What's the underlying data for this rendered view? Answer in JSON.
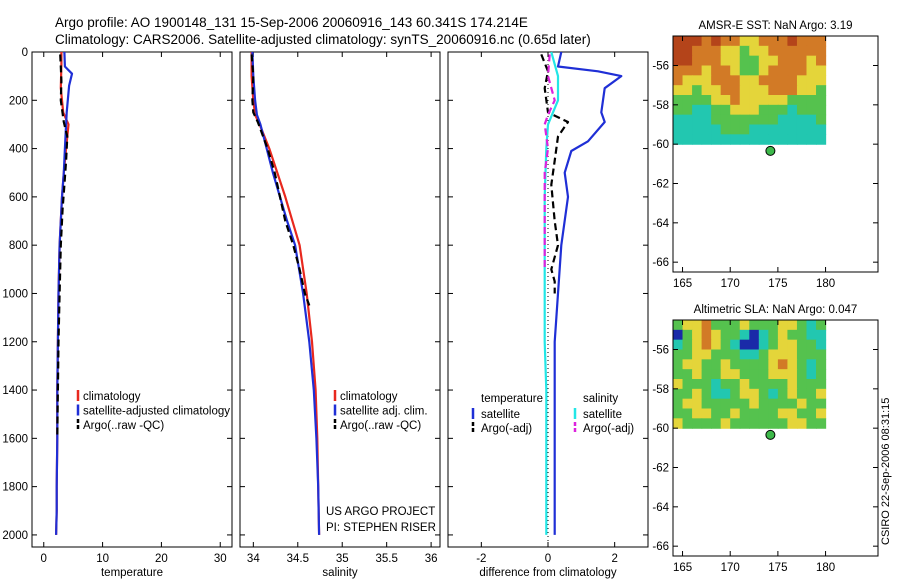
{
  "header": {
    "line1": "Argo profile: AO 1900148_131 15-Sep-2006 20060916_143 60.341S 174.214E",
    "line2": "Climatology: CARS2006. Satellite-adjusted climatology: synTS_20060916.nc (0.65d later)"
  },
  "credit": {
    "project": "US ARGO PROJECT",
    "pi": "PI: STEPHEN RISER",
    "stamp": "CSIRO 22-Sep-2006 08:31:15"
  },
  "colors": {
    "climatology": "#e8281e",
    "satellite": "#1f2fd6",
    "argo": "#000000",
    "sat_diff": "#22e6e6",
    "argo_diff": "#dd22dd"
  },
  "chart_data": [
    {
      "id": "temperature",
      "type": "line",
      "xlabel": "temperature",
      "ylabel": "",
      "xlim": [
        -2,
        32
      ],
      "ylim": [
        0,
        2050
      ],
      "xticks": [
        0,
        10,
        20,
        30
      ],
      "yticks": [
        0,
        200,
        400,
        600,
        800,
        1000,
        1200,
        1400,
        1600,
        1800,
        2000
      ],
      "legend": [
        "climatology",
        "satellite-adjusted climatology",
        "Argo(..raw -QC)"
      ],
      "series": [
        {
          "name": "climatology",
          "role": "climatology",
          "x": [
            3.0,
            3.0,
            2.9,
            3.3,
            4.2,
            3.8,
            3.4,
            3.1,
            2.9,
            2.7,
            2.5,
            2.4,
            2.3,
            2.3,
            2.2,
            2.2,
            2.1
          ],
          "y": [
            0,
            50,
            150,
            250,
            300,
            400,
            500,
            600,
            700,
            800,
            1000,
            1200,
            1400,
            1600,
            1800,
            1900,
            2000
          ]
        },
        {
          "name": "satellite-adjusted climatology",
          "role": "satellite",
          "x": [
            3.5,
            3.6,
            4.8,
            4.3,
            3.9,
            3.6,
            3.4,
            3.1,
            2.9,
            2.7,
            2.5,
            2.4,
            2.3,
            2.3,
            2.2,
            2.2,
            2.1
          ],
          "y": [
            0,
            60,
            90,
            140,
            250,
            400,
            500,
            600,
            700,
            800,
            1000,
            1200,
            1400,
            1600,
            1800,
            1900,
            2000
          ]
        },
        {
          "name": "Argo(..raw -QC)",
          "role": "argo",
          "x": [
            2.8,
            2.9,
            3.0,
            2.9,
            3.4,
            4.0,
            3.8,
            3.5,
            3.2,
            2.9,
            2.7,
            2.5,
            2.4,
            2.3
          ],
          "y": [
            10,
            60,
            120,
            200,
            290,
            350,
            450,
            550,
            650,
            800,
            1000,
            1200,
            1400,
            1600
          ]
        }
      ]
    },
    {
      "id": "salinity",
      "type": "line",
      "xlabel": "salinity",
      "ylabel": "",
      "xlim": [
        33.85,
        36.1
      ],
      "ylim": [
        0,
        2050
      ],
      "xticks": [
        34,
        34.5,
        35,
        35.5,
        36
      ],
      "yticks": [
        0,
        200,
        400,
        600,
        800,
        1000,
        1200,
        1400,
        1600,
        1800,
        2000
      ],
      "legend": [
        "climatology",
        "satellite adj. clim.",
        "Argo(..raw -QC)"
      ],
      "series": [
        {
          "name": "climatology",
          "role": "climatology",
          "x": [
            33.98,
            33.98,
            34.0,
            34.02,
            34.07,
            34.18,
            34.27,
            34.36,
            34.44,
            34.52,
            34.6,
            34.66,
            34.7,
            34.72,
            34.73,
            34.74
          ],
          "y": [
            0,
            100,
            200,
            260,
            300,
            400,
            500,
            600,
            700,
            800,
            1000,
            1200,
            1400,
            1600,
            1800,
            2000
          ]
        },
        {
          "name": "satellite adj. clim.",
          "role": "satellite",
          "x": [
            33.99,
            34.0,
            34.02,
            34.04,
            34.08,
            34.15,
            34.22,
            34.3,
            34.38,
            34.47,
            34.56,
            34.63,
            34.68,
            34.71,
            34.73,
            34.74
          ],
          "y": [
            0,
            100,
            200,
            260,
            300,
            400,
            500,
            600,
            700,
            800,
            1000,
            1200,
            1400,
            1600,
            1800,
            2000
          ]
        },
        {
          "name": "Argo(..raw -QC)",
          "role": "argo",
          "x": [
            33.98,
            34.0,
            33.99,
            34.0,
            34.05,
            34.16,
            34.24,
            34.3,
            34.36,
            34.45,
            34.52,
            34.58,
            34.63
          ],
          "y": [
            10,
            100,
            200,
            250,
            290,
            400,
            500,
            600,
            700,
            800,
            900,
            1000,
            1050
          ]
        }
      ]
    },
    {
      "id": "difference",
      "type": "line",
      "xlabel": "difference from climatology",
      "ylabel": "",
      "xlim": [
        -3,
        3
      ],
      "ylim": [
        0,
        2050
      ],
      "xticks": [
        -2,
        0,
        2
      ],
      "yticks": [
        0,
        200,
        400,
        600,
        800,
        1000,
        1200,
        1400,
        1600,
        1800,
        2000
      ],
      "legend_headers": [
        "temperature",
        "salinity"
      ],
      "legend": [
        {
          "label": "satellite",
          "role": "satellite"
        },
        {
          "label": "Argo(-adj)",
          "role": "argo"
        },
        {
          "label": "satellite",
          "role": "sat_diff"
        },
        {
          "label": "Argo(-adj)",
          "role": "argo_diff"
        }
      ],
      "series": [
        {
          "name": "temperature satellite",
          "role": "satellite",
          "x": [
            0.4,
            0.3,
            1.5,
            2.2,
            1.7,
            1.6,
            1.7,
            1.2,
            0.7,
            0.5,
            0.6,
            0.4,
            0.3,
            0.2,
            0.2,
            0.2,
            0.2,
            0.2
          ],
          "y": [
            0,
            60,
            80,
            100,
            150,
            250,
            290,
            370,
            410,
            500,
            600,
            800,
            1000,
            1200,
            1400,
            1600,
            1800,
            2000
          ]
        },
        {
          "name": "temperature Argo(-adj)",
          "role": "argo",
          "x": [
            -0.2,
            0.0,
            -0.1,
            0.0,
            0.6,
            0.3,
            0.2,
            0.1,
            0.2,
            0.3,
            0.1,
            0.2,
            0.2
          ],
          "y": [
            10,
            80,
            150,
            250,
            290,
            350,
            450,
            550,
            700,
            800,
            900,
            950,
            1000
          ]
        },
        {
          "name": "salinity satellite",
          "role": "sat_diff",
          "x": [
            0.1,
            0.3,
            0.3,
            0.0,
            -0.05,
            -0.1,
            -0.1,
            -0.1,
            -0.1,
            -0.05,
            -0.05,
            -0.05,
            -0.05,
            -0.05
          ],
          "y": [
            0,
            100,
            200,
            300,
            400,
            600,
            800,
            1000,
            1200,
            1400,
            1600,
            1800,
            1900,
            2000
          ]
        },
        {
          "name": "salinity Argo(-adj)",
          "role": "argo_diff",
          "x": [
            0.05,
            0.0,
            0.2,
            0.0,
            -0.1,
            0.0,
            -0.1,
            -0.1,
            -0.1,
            -0.1,
            -0.1
          ],
          "y": [
            10,
            100,
            200,
            260,
            300,
            400,
            500,
            600,
            700,
            800,
            900
          ]
        }
      ]
    },
    {
      "id": "sst_map",
      "type": "heatmap",
      "title": "AMSR-E SST: NaN Argo: 3.19",
      "xlim": [
        164,
        185.5
      ],
      "ylim": [
        -66.5,
        -54.5
      ],
      "xticks": [
        165,
        170,
        175,
        180
      ],
      "yticks": [
        -56,
        -58,
        -60,
        -62,
        -64,
        -66
      ],
      "grid_extent": {
        "x": [
          164,
          180
        ],
        "y": [
          -60,
          -54.5
        ]
      },
      "marker": {
        "lon": 174.214,
        "lat": -60.341
      },
      "rows": [
        "RRROROOYYOOOROOO",
        "RROOOYYGYYOOOOOO",
        "RROOOYYGGYYOOOYO",
        "OOOYOOYGGYOOOOYY",
        "OYYYOOOYYOOOOYYY",
        "YYGYYOOYYYOOOYYG",
        "GGGGYYOYYYYYGGGG",
        "GGCCGGYYYGGGCGGG",
        "CCCCGGGGGGGCCCCG",
        "CCCCCGGGCCCCCCCC",
        "CCCCCCCCCCCCCCCC"
      ]
    },
    {
      "id": "sla_map",
      "type": "heatmap",
      "title": "Altimetric SLA: NaN Argo: 0.047",
      "xlim": [
        164,
        185.5
      ],
      "ylim": [
        -66.5,
        -54.5
      ],
      "xticks": [
        165,
        170,
        175,
        180
      ],
      "yticks": [
        -56,
        -58,
        -60,
        -62,
        -64,
        -66
      ],
      "grid_extent": {
        "x": [
          164,
          180
        ],
        "y": [
          -60,
          -54.5
        ]
      },
      "marker": {
        "lon": 174.214,
        "lat": -60.341
      },
      "rows": [
        "GYYOGGGYGGGYYGCG",
        "BGYOYGGCBCGYGGCC",
        "CGYOYGCBBCGYYGGC",
        "GGYYGGGCCGYYYGGG",
        "GYYGGYGGGGYOYGCG",
        "GGYGGYYGGGYYYGCG",
        "YGGGCGGYGGGGYGGG",
        "GGYGCCGYYGCGYGGY",
        "GYYGGGGGYGGGGYGG",
        "GGYYGGYGGGGYYGGY",
        "YGGGGYGGGGGGYYGG"
      ]
    }
  ],
  "palette": {
    "R": "#b4441a",
    "O": "#d27a26",
    "Y": "#e4d53a",
    "G": "#55c24e",
    "C": "#22c7b0",
    "B": "#1a2aa8"
  }
}
